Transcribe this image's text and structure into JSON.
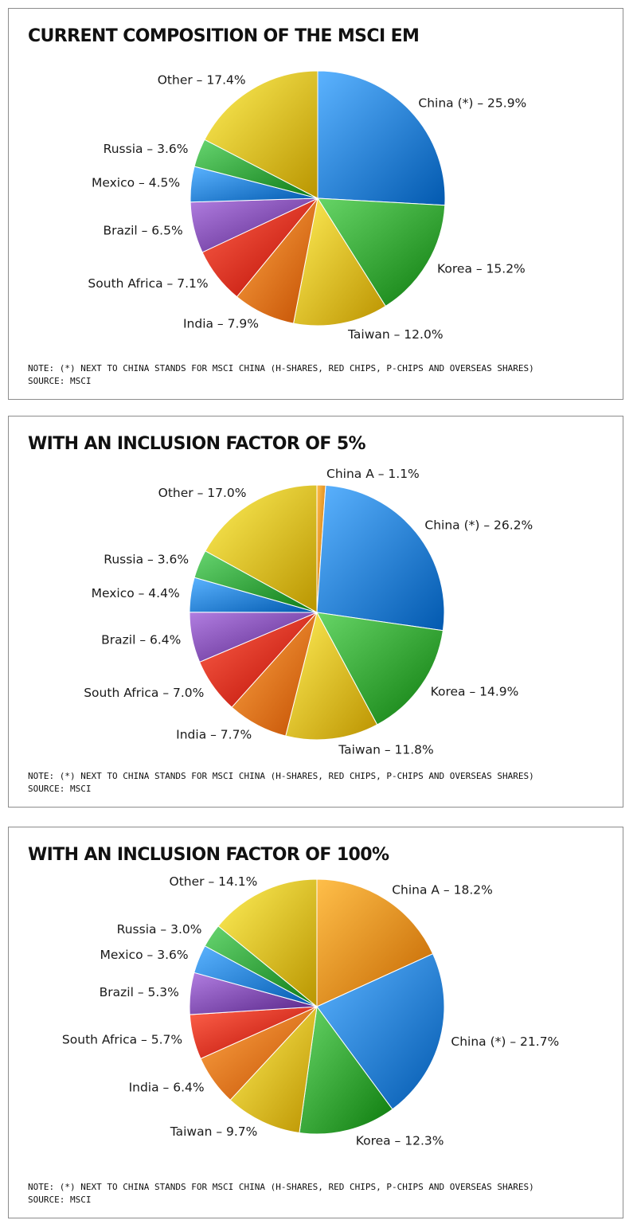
{
  "colors": {
    "China A": "#f0921d",
    "China (*)": "#2f86dc",
    "Korea": "#3aa83a",
    "Taiwan": "#e8c02a",
    "India": "#ef7a1a",
    "South Africa": "#e4361f",
    "Brazil": "#8451b4",
    "Mexico": "#2e86dc",
    "Russia": "#3aa843",
    "Other": "#e6c22c"
  },
  "chart_data": [
    {
      "type": "pie",
      "title": "CURRENT COMPOSITION OF THE MSCI EM",
      "slices": [
        {
          "label": "China (*) – 25.9%",
          "name": "China (*)",
          "value": 25.9
        },
        {
          "label": "Korea – 15.2%",
          "name": "Korea",
          "value": 15.2
        },
        {
          "label": "Taiwan – 12.0%",
          "name": "Taiwan",
          "value": 12.0
        },
        {
          "label": "India – 7.9%",
          "name": "India",
          "value": 7.9
        },
        {
          "label": "South Africa – 7.1%",
          "name": "South Africa",
          "value": 7.1
        },
        {
          "label": "Brazil – 6.5%",
          "name": "Brazil",
          "value": 6.5
        },
        {
          "label": "Mexico – 4.5%",
          "name": "Mexico",
          "value": 4.5
        },
        {
          "label": "Russia – 3.6%",
          "name": "Russia",
          "value": 3.6
        },
        {
          "label": "Other – 17.4%",
          "name": "Other",
          "value": 17.4
        }
      ],
      "note": "NOTE: (*) NEXT TO CHINA STANDS FOR MSCI CHINA (H-SHARES, RED CHIPS, P-CHIPS AND OVERSEAS SHARES)",
      "source": "SOURCE: MSCI"
    },
    {
      "type": "pie",
      "title": "WITH AN INCLUSION FACTOR OF 5%",
      "slices": [
        {
          "label": "China A – 1.1%",
          "name": "China A",
          "value": 1.1
        },
        {
          "label": "China (*) – 26.2%",
          "name": "China (*)",
          "value": 26.2
        },
        {
          "label": "Korea – 14.9%",
          "name": "Korea",
          "value": 14.9
        },
        {
          "label": "Taiwan – 11.8%",
          "name": "Taiwan",
          "value": 11.8
        },
        {
          "label": "India – 7.7%",
          "name": "India",
          "value": 7.7
        },
        {
          "label": "South Africa – 7.0%",
          "name": "South Africa",
          "value": 7.0
        },
        {
          "label": "Brazil – 6.4%",
          "name": "Brazil",
          "value": 6.4
        },
        {
          "label": "Mexico – 4.4%",
          "name": "Mexico",
          "value": 4.4
        },
        {
          "label": "Russia – 3.6%",
          "name": "Russia",
          "value": 3.6
        },
        {
          "label": "Other – 17.0%",
          "name": "Other",
          "value": 17.0
        }
      ],
      "note": "NOTE: (*) NEXT TO CHINA STANDS FOR MSCI CHINA (H-SHARES, RED CHIPS, P-CHIPS AND OVERSEAS SHARES)",
      "source": "SOURCE: MSCI"
    },
    {
      "type": "pie",
      "title": "WITH AN INCLUSION FACTOR OF 100%",
      "slices": [
        {
          "label": "China A – 18.2%",
          "name": "China A",
          "value": 18.2
        },
        {
          "label": "China (*) – 21.7%",
          "name": "China (*)",
          "value": 21.7
        },
        {
          "label": "Korea – 12.3%",
          "name": "Korea",
          "value": 12.3
        },
        {
          "label": "Taiwan – 9.7%",
          "name": "Taiwan",
          "value": 9.7
        },
        {
          "label": "India – 6.4%",
          "name": "India",
          "value": 6.4
        },
        {
          "label": "South Africa – 5.7%",
          "name": "South Africa",
          "value": 5.7
        },
        {
          "label": "Brazil – 5.3%",
          "name": "Brazil",
          "value": 5.3
        },
        {
          "label": "Mexico – 3.6%",
          "name": "Mexico",
          "value": 3.6
        },
        {
          "label": "Russia – 3.0%",
          "name": "Russia",
          "value": 3.0
        },
        {
          "label": "Other – 14.1%",
          "name": "Other",
          "value": 14.1
        }
      ],
      "note": "NOTE: (*) NEXT TO CHINA STANDS FOR MSCI CHINA (H-SHARES, RED CHIPS, P-CHIPS AND OVERSEAS SHARES)",
      "source": "SOURCE: MSCI"
    }
  ]
}
